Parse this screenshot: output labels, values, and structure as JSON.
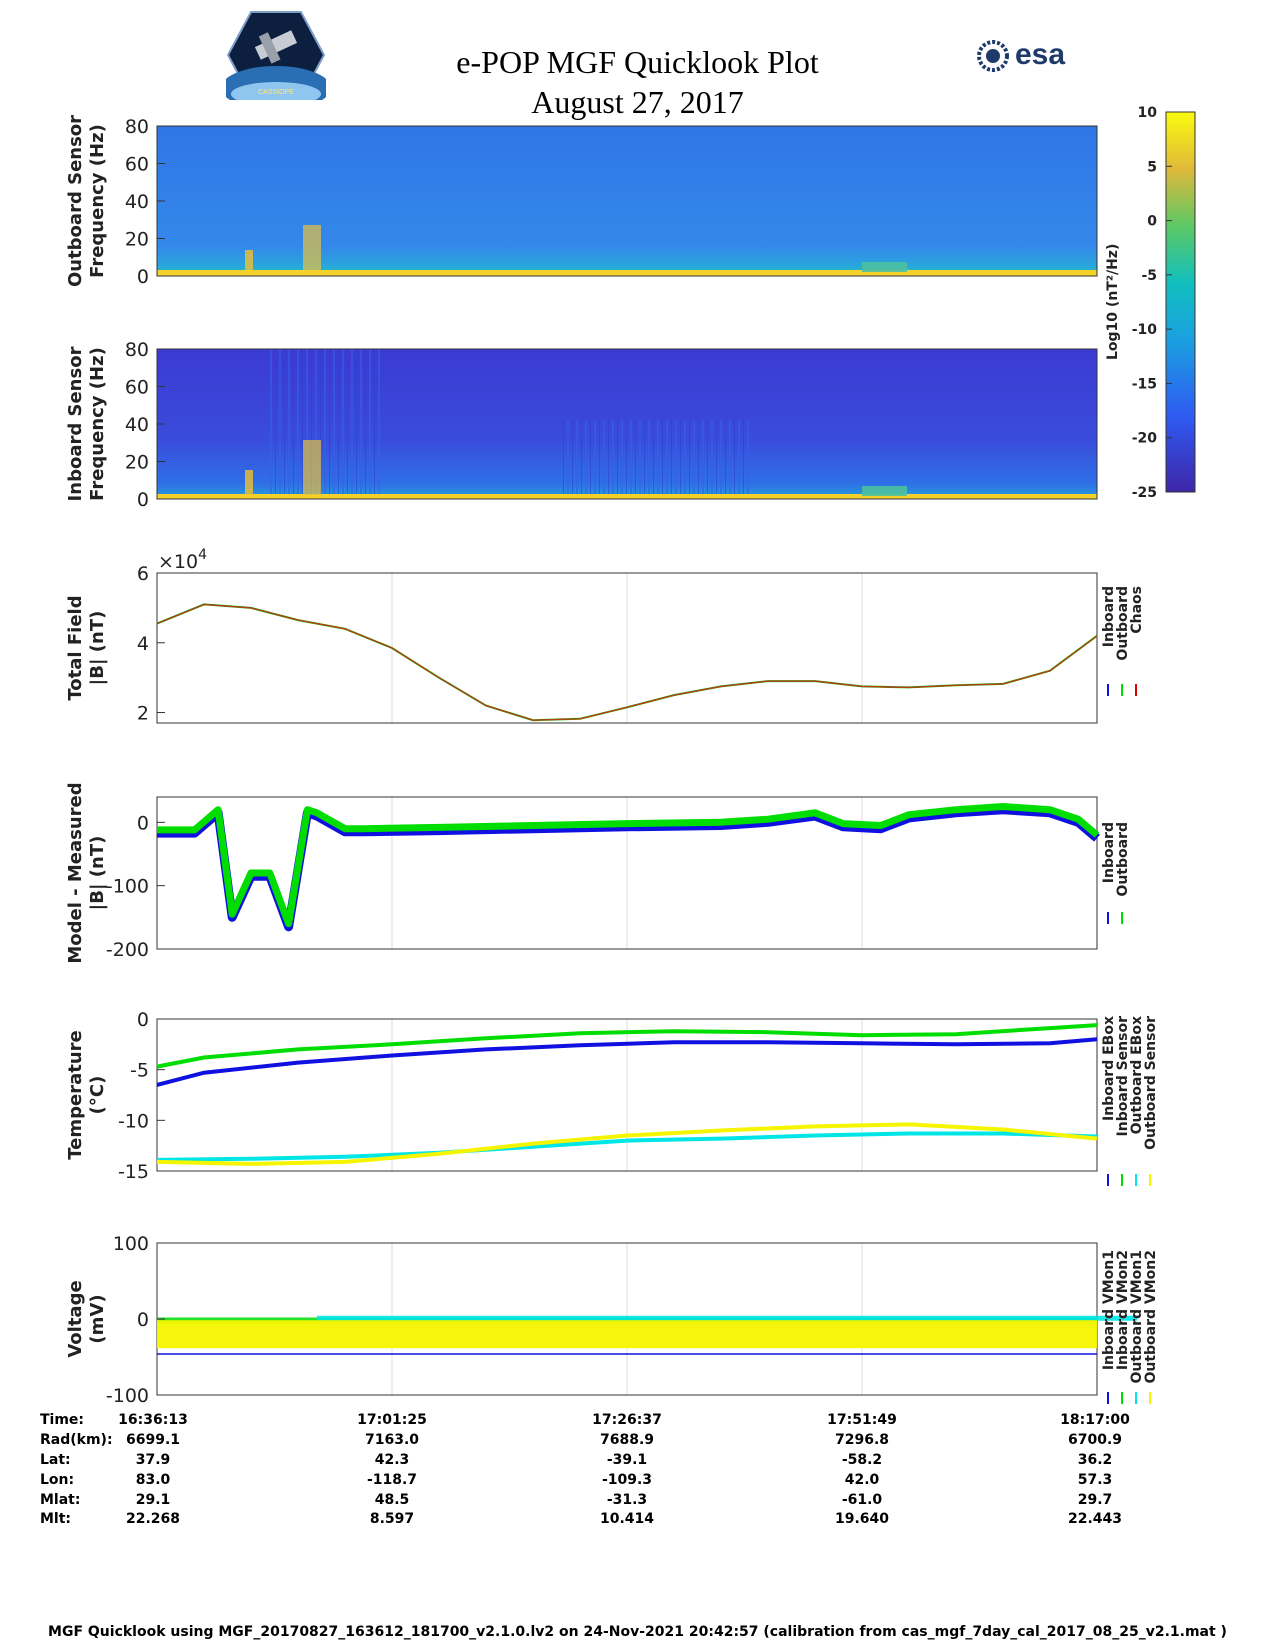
{
  "header": {
    "title": "e-POP MGF Quicklook Plot",
    "date": "August 27, 2017",
    "esa_logo_text": "esa",
    "cassiope_logo_text": "CASSIOPE"
  },
  "colorbar": {
    "label": "Log10 (nT²/Hz)",
    "ticks": [
      "10",
      "5",
      "0",
      "-5",
      "-10",
      "-15",
      "-20",
      "-25"
    ],
    "range": [
      -25,
      10
    ]
  },
  "chart_data": [
    {
      "type": "heatmap",
      "id": "outboard-spectrogram",
      "ylabel_lines": [
        "Outboard Sensor",
        "Frequency (Hz)"
      ],
      "yticks": [
        "80",
        "60",
        "40",
        "20",
        "0"
      ],
      "ylim": [
        0,
        80
      ]
    },
    {
      "type": "heatmap",
      "id": "inboard-spectrogram",
      "ylabel_lines": [
        "Inboard Sensor",
        "Frequency (Hz)"
      ],
      "yticks": [
        "80",
        "60",
        "40",
        "20",
        "0"
      ],
      "ylim": [
        0,
        80
      ]
    },
    {
      "type": "line",
      "id": "total-field",
      "ylabel_lines": [
        "Total Field",
        "|B| (nT)"
      ],
      "yticks": [
        "6",
        "4",
        "2"
      ],
      "yscale_label": "×10",
      "yscale_exp": "4",
      "ylim": [
        1.7,
        6
      ],
      "legend": [
        "Inboard",
        "Outboard",
        "Chaos"
      ],
      "legend_colors": [
        "#1010e0",
        "#00dd00",
        "#dd0000"
      ],
      "x": [
        0,
        0.05,
        0.1,
        0.15,
        0.2,
        0.25,
        0.3,
        0.35,
        0.4,
        0.45,
        0.5,
        0.55,
        0.6,
        0.65,
        0.7,
        0.75,
        0.8,
        0.85,
        0.9,
        0.95,
        1.0
      ],
      "y": [
        4.55,
        5.1,
        5.0,
        4.65,
        4.4,
        3.85,
        3.0,
        2.2,
        1.78,
        1.82,
        2.15,
        2.5,
        2.75,
        2.9,
        2.9,
        2.75,
        2.72,
        2.78,
        2.82,
        3.2,
        4.2
      ]
    },
    {
      "type": "line",
      "id": "model-minus-measured",
      "ylabel_lines": [
        "Model - Measured",
        "|B| (nT)"
      ],
      "yticks": [
        "0",
        "-100",
        "-200"
      ],
      "ylim": [
        -200,
        40
      ],
      "legend": [
        "Inboard",
        "Outboard"
      ],
      "legend_colors": [
        "#1010e0",
        "#00dd00"
      ],
      "x": [
        0,
        0.04,
        0.065,
        0.08,
        0.1,
        0.12,
        0.14,
        0.16,
        0.17,
        0.2,
        0.22,
        0.3,
        0.4,
        0.5,
        0.6,
        0.65,
        0.7,
        0.73,
        0.77,
        0.8,
        0.85,
        0.9,
        0.95,
        0.98,
        1.0
      ],
      "y": [
        -12,
        -12,
        20,
        -145,
        -80,
        -80,
        -160,
        20,
        15,
        -10,
        -10,
        -8,
        -5,
        -2,
        0,
        5,
        15,
        -2,
        -5,
        12,
        20,
        25,
        20,
        5,
        -20
      ]
    },
    {
      "type": "line",
      "id": "temperature",
      "ylabel_lines": [
        "Temperature",
        "(°C)"
      ],
      "yticks": [
        "0",
        "-5",
        "-10",
        "-15"
      ],
      "ylim": [
        -15,
        0
      ],
      "legend": [
        "Inboard EBox",
        "Inboard Sensor",
        "Outboard EBox",
        "Outboard Sensor"
      ],
      "legend_colors": [
        "#1010e0",
        "#00dd00",
        "#00e5e5",
        "#f5f500"
      ],
      "series": [
        {
          "name": "Inboard EBox",
          "color": "#1010e0",
          "x": [
            0,
            0.05,
            0.15,
            0.25,
            0.35,
            0.45,
            0.55,
            0.65,
            0.75,
            0.85,
            0.95,
            1.0
          ],
          "y": [
            -6.5,
            -5.3,
            -4.3,
            -3.6,
            -3.0,
            -2.6,
            -2.3,
            -2.3,
            -2.4,
            -2.5,
            -2.4,
            -2.0
          ]
        },
        {
          "name": "Inboard Sensor",
          "color": "#00dd00",
          "x": [
            0,
            0.05,
            0.15,
            0.25,
            0.35,
            0.45,
            0.55,
            0.65,
            0.75,
            0.85,
            0.95,
            1.0
          ],
          "y": [
            -4.7,
            -3.8,
            -3.0,
            -2.5,
            -1.9,
            -1.4,
            -1.2,
            -1.3,
            -1.6,
            -1.5,
            -0.9,
            -0.6
          ]
        },
        {
          "name": "Outboard EBox",
          "color": "#00e5e5",
          "x": [
            0,
            0.1,
            0.2,
            0.3,
            0.4,
            0.5,
            0.6,
            0.7,
            0.8,
            0.9,
            1.0
          ],
          "y": [
            -13.9,
            -13.8,
            -13.6,
            -13.2,
            -12.6,
            -12.0,
            -11.8,
            -11.5,
            -11.3,
            -11.3,
            -11.6
          ]
        },
        {
          "name": "Outboard Sensor",
          "color": "#f5f500",
          "x": [
            0,
            0.1,
            0.2,
            0.3,
            0.4,
            0.5,
            0.6,
            0.7,
            0.8,
            0.9,
            1.0
          ],
          "y": [
            -14.1,
            -14.3,
            -14.1,
            -13.3,
            -12.3,
            -11.5,
            -11.0,
            -10.6,
            -10.4,
            -10.9,
            -11.8
          ]
        }
      ]
    },
    {
      "type": "line",
      "id": "voltage",
      "ylabel_lines": [
        "Voltage",
        "(mV)"
      ],
      "yticks": [
        "100",
        "0",
        "-100"
      ],
      "ylim": [
        -100,
        100
      ],
      "legend": [
        "Inboard VMon1",
        "Inboard VMon2",
        "Outboard VMon1",
        "Outboard VMon2"
      ],
      "legend_colors": [
        "#1010e0",
        "#00dd00",
        "#00e5e5",
        "#f5f500"
      ],
      "series": [
        {
          "name": "Inboard VMon1",
          "color": "#1010e0",
          "level": -46
        },
        {
          "name": "Inboard VMon2",
          "color": "#00dd00",
          "level": -2
        },
        {
          "name": "Outboard VMon1",
          "color": "#00e5e5",
          "level": -1
        },
        {
          "name": "Outboard VMon2",
          "color": "#f5f500",
          "level": -20
        }
      ]
    }
  ],
  "ephemeris": {
    "labels": [
      "Time:",
      "Rad(km):",
      "Lat:",
      "Lon:",
      "Mlat:",
      "Mlt:"
    ],
    "columns": [
      [
        "16:36:13",
        "6699.1",
        "37.9",
        "83.0",
        "29.1",
        "22.268"
      ],
      [
        "17:01:25",
        "7163.0",
        "42.3",
        "-118.7",
        "48.5",
        "8.597"
      ],
      [
        "17:26:37",
        "7688.9",
        "-39.1",
        "-109.3",
        "-31.3",
        "10.414"
      ],
      [
        "17:51:49",
        "7296.8",
        "-58.2",
        "42.0",
        "-61.0",
        "19.640"
      ],
      [
        "18:17:00",
        "6700.9",
        "36.2",
        "57.3",
        "29.7",
        "22.443"
      ]
    ]
  },
  "footer": {
    "text": "MGF Quicklook using MGF_20170827_163612_181700_v2.1.0.lv2 on 24-Nov-2021 20:42:57 (calibration from cas_mgf_7day_cal_2017_08_25_v2.1.mat )"
  }
}
